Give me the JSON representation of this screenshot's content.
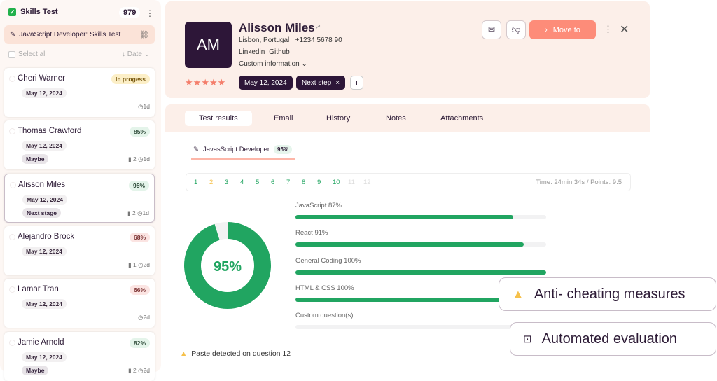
{
  "sidebar": {
    "title": "Skills Test",
    "count": "979",
    "test_name": "JavaScript Developer: Skills Test",
    "select_all": "Select all",
    "sort": "↓ Date ⌄",
    "candidates": [
      {
        "name": "Cheri Warner",
        "badge": "In progess",
        "badge_type": "progress",
        "date": "May 12, 2024",
        "tag": "",
        "files": "",
        "age": "1d"
      },
      {
        "name": "Thomas Crawford",
        "badge": "85%",
        "badge_type": "good",
        "date": "May 12, 2024",
        "tag": "Maybe",
        "files": "2",
        "age": "1d"
      },
      {
        "name": "Alisson Miles",
        "badge": "95%",
        "badge_type": "good",
        "date": "May 12, 2024",
        "tag": "Next stage",
        "files": "2",
        "age": "1d",
        "selected": true
      },
      {
        "name": "Alejandro Brock",
        "badge": "68%",
        "badge_type": "bad",
        "date": "May 12, 2024",
        "tag": "",
        "files": "1",
        "age": "2d"
      },
      {
        "name": "Lamar Tran",
        "badge": "66%",
        "badge_type": "bad",
        "date": "May 12, 2024",
        "tag": "",
        "files": "",
        "age": "2d"
      },
      {
        "name": "Jamie Arnold",
        "badge": "82%",
        "badge_type": "good",
        "date": "May 12, 2024",
        "tag": "Maybe",
        "files": "2",
        "age": "2d"
      }
    ]
  },
  "header": {
    "initials": "AM",
    "name": "Alisson Miles",
    "location": "Lisbon, Portugal",
    "phone": "+1234 5678 90",
    "links": [
      "Linkedin",
      "Github"
    ],
    "custom_info": "Custom information ⌄",
    "rating": 5,
    "date_pill": "May 12, 2024",
    "step_pill": "Next step",
    "move_to": "Move to"
  },
  "tabs": [
    "Test results",
    "Email",
    "History",
    "Notes",
    "Attachments"
  ],
  "subtab": {
    "label": "JavasScript Developer",
    "score": "95%"
  },
  "questions": [
    {
      "n": "1",
      "status": "correct"
    },
    {
      "n": "2",
      "status": "partial"
    },
    {
      "n": "3",
      "status": "correct"
    },
    {
      "n": "4",
      "status": "correct"
    },
    {
      "n": "5",
      "status": "correct"
    },
    {
      "n": "6",
      "status": "correct"
    },
    {
      "n": "7",
      "status": "correct"
    },
    {
      "n": "8",
      "status": "correct"
    },
    {
      "n": "9",
      "status": "correct"
    },
    {
      "n": "10",
      "status": "correct"
    },
    {
      "n": "11",
      "status": "none"
    },
    {
      "n": "12",
      "status": "none"
    }
  ],
  "time_points": "Time: 24min 34s / Points: 9.5",
  "overall": {
    "label": "95%",
    "value": 95
  },
  "skills": [
    {
      "label": "JavaScript 87%",
      "value": 87
    },
    {
      "label": "React 91%",
      "value": 91
    },
    {
      "label": "General Coding 100%",
      "value": 100
    },
    {
      "label": "HTML & CSS 100%",
      "value": 100
    },
    {
      "label": "Custom question(s)",
      "value": 0
    }
  ],
  "warning": "Paste detected on question 12",
  "callouts": {
    "anti_cheating": "Anti- cheating measures",
    "automated": "Automated evaluation"
  },
  "colors": {
    "accent": "#fd8c79",
    "green": "#21a561",
    "dark": "#2d1638",
    "warning": "#f6c14b"
  }
}
